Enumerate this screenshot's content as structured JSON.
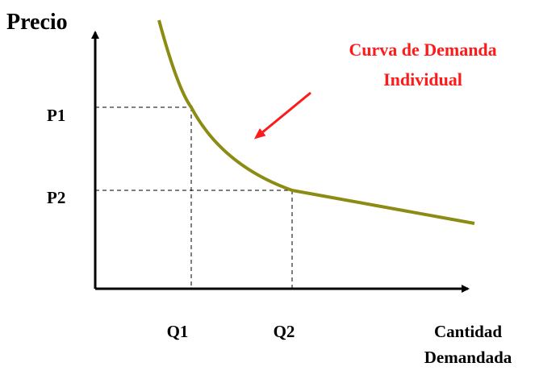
{
  "axes": {
    "y_label": "Precio",
    "x_label": [
      "Cantidad",
      "Demandada"
    ]
  },
  "prices": [
    "P1",
    "P2"
  ],
  "quantities": [
    "Q1",
    "Q2"
  ],
  "annotation": {
    "lines": [
      "Curva de Demanda",
      "Individual"
    ]
  }
}
